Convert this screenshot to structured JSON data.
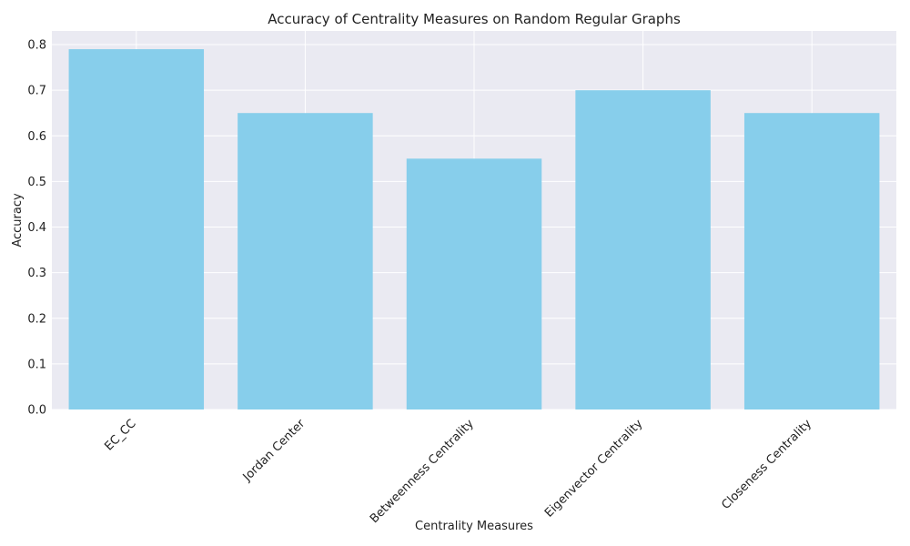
{
  "chart_data": {
    "type": "bar",
    "title": "Accuracy of Centrality Measures on Random Regular Graphs",
    "xlabel": "Centrality Measures",
    "ylabel": "Accuracy",
    "categories": [
      "EC_CC",
      "Jordan Center",
      "Betweenness Centrality",
      "Eigenvector Centrality",
      "Closeness Centrality"
    ],
    "values": [
      0.79,
      0.65,
      0.55,
      0.7,
      0.65
    ],
    "ylim": [
      0,
      0.83
    ],
    "yticks": [
      "0.0",
      "0.1",
      "0.2",
      "0.3",
      "0.4",
      "0.5",
      "0.6",
      "0.7",
      "0.8"
    ],
    "grid": true,
    "legend": "none",
    "colors": {
      "bar": "#87ceeb",
      "plot_background": "#eaeaf2",
      "grid": "#ffffff",
      "text": "#222222"
    }
  }
}
